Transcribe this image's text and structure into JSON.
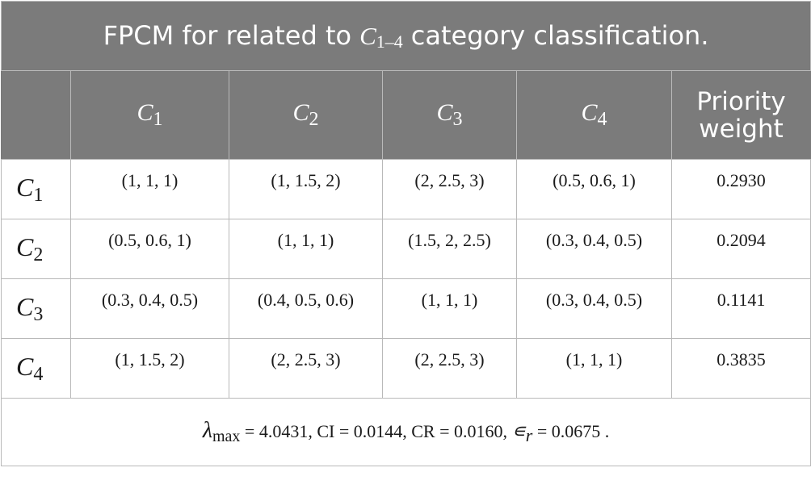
{
  "title": {
    "prefix": "FPCM for related to",
    "symbol": "C",
    "symbol_sub": "1–4",
    "suffix": "category classification."
  },
  "columns": [
    {
      "symbol": "C",
      "sub": "1"
    },
    {
      "symbol": "C",
      "sub": "2"
    },
    {
      "symbol": "C",
      "sub": "3"
    },
    {
      "symbol": "C",
      "sub": "4"
    }
  ],
  "priority_header": {
    "line1": "Priority",
    "line2": "weight"
  },
  "rows": [
    {
      "symbol": "C",
      "sub": "1",
      "cells": [
        "(1, 1, 1)",
        "(1, 1.5, 2)",
        "(2, 2.5, 3)",
        "(0.5, 0.6, 1)"
      ],
      "weight": "0.2930"
    },
    {
      "symbol": "C",
      "sub": "2",
      "cells": [
        "(0.5, 0.6, 1)",
        "(1, 1, 1)",
        "(1.5, 2, 2.5)",
        "(0.3, 0.4, 0.5)"
      ],
      "weight": "0.2094"
    },
    {
      "symbol": "C",
      "sub": "3",
      "cells": [
        "(0.3, 0.4, 0.5)",
        "(0.4, 0.5, 0.6)",
        "(1, 1, 1)",
        "(0.3, 0.4, 0.5)"
      ],
      "weight": "0.1141"
    },
    {
      "symbol": "C",
      "sub": "4",
      "cells": [
        "(1, 1.5, 2)",
        "(2, 2.5, 3)",
        "(2, 2.5, 3)",
        "(1, 1, 1)"
      ],
      "weight": "0.3835"
    }
  ],
  "footnote": {
    "lambda_symbol": "λ",
    "lambda_sub": "max",
    "lambda_value": " = 4.0431, ",
    "ci": "CI = 0.0144, ",
    "cr": "CR = 0.0160, ",
    "eps_symbol": "∊",
    "eps_sub": "r",
    "eps_value": " = 0.0675 ."
  }
}
